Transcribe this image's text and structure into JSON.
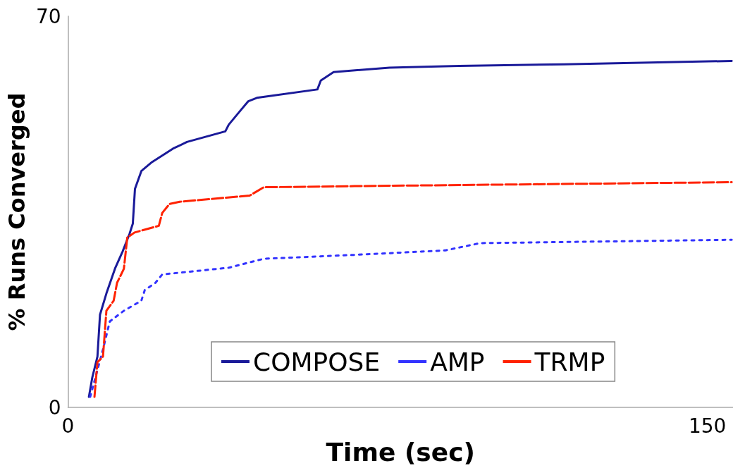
{
  "chart_data": {
    "type": "line",
    "xlabel": "Time (sec)",
    "ylabel": "% Runs Converged",
    "xlim": [
      0,
      156
    ],
    "xticks": [
      0,
      150
    ],
    "ylim": [
      0,
      70
    ],
    "yticks": [
      0,
      70
    ],
    "grid": false,
    "legend": "bottom",
    "marker": "none",
    "series": [
      {
        "name": "COMPOSE",
        "color": "#1a1a99",
        "line_style": "solid",
        "x": [
          4.9,
          5.7,
          6.9,
          7.5,
          9.0,
          11.1,
          12.8,
          14.4,
          15.2,
          15.7,
          17.2,
          19.7,
          24.6,
          27.9,
          36.9,
          37.7,
          40.2,
          42.3,
          44.3,
          58.5,
          59.3,
          62.3,
          75.4,
          91.8,
          116.4,
          155.7
        ],
        "values": [
          1.9,
          5.4,
          9.1,
          16.6,
          20.4,
          25,
          27.9,
          31,
          32.9,
          39.1,
          42.3,
          43.9,
          46.3,
          47.5,
          49.4,
          50.6,
          52.9,
          54.8,
          55.4,
          56.9,
          58.5,
          60,
          60.8,
          61.1,
          61.4,
          62
        ]
      },
      {
        "name": "AMP",
        "color": "#3333ff",
        "line_style": "dotted",
        "x": [
          5.2,
          8.2,
          9.8,
          13.1,
          17.2,
          18.0,
          20.5,
          22.1,
          37.7,
          45.9,
          67.2,
          88.5,
          96.7,
          116.4,
          155.7
        ],
        "values": [
          1.9,
          10.4,
          15.4,
          17.3,
          19.1,
          21,
          22.3,
          23.8,
          25,
          26.6,
          27.3,
          28.1,
          29.4,
          29.6,
          30
        ]
      },
      {
        "name": "TRMP",
        "color": "#ff2200",
        "line_style": "dashed",
        "x": [
          6.2,
          6.9,
          8.2,
          9.0,
          10.7,
          11.5,
          13.1,
          13.9,
          15.6,
          21.3,
          22.1,
          23.8,
          26.2,
          42.6,
          45.9,
          67.2,
          155.7
        ],
        "values": [
          1.9,
          8.1,
          9.1,
          17.3,
          19.1,
          22.3,
          24.8,
          30.4,
          31.3,
          32.5,
          34.8,
          36.4,
          36.8,
          37.9,
          39.4,
          39.6,
          40.3
        ]
      }
    ]
  }
}
